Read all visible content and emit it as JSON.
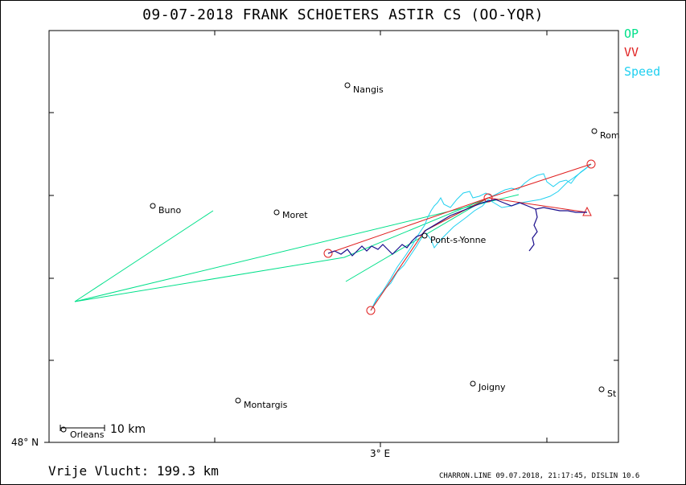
{
  "title": "09-07-2018   FRANK SCHOETERS   ASTIR CS (OO-YQR)",
  "legend": {
    "op": {
      "label": "OP",
      "color": "#00e08a"
    },
    "vv": {
      "label": "VV",
      "color": "#e02020"
    },
    "speed": {
      "label": "Speed",
      "color": "#20d0f0"
    }
  },
  "axes": {
    "lat_label": "48° N",
    "lon_label": "3° E"
  },
  "scale": {
    "label": "10  km"
  },
  "distance": "Vrije Vlucht:  199.3 km",
  "footer": "CHARRON.LINE 09.07.2018, 21:17:45, DISLIN 10.6",
  "towns": [
    {
      "name": "Nangis"
    },
    {
      "name": "Rom"
    },
    {
      "name": "Buno"
    },
    {
      "name": "Moret"
    },
    {
      "name": "Pont-s-Yonne"
    },
    {
      "name": "Joigny"
    },
    {
      "name": "Montargis"
    },
    {
      "name": "St"
    },
    {
      "name": "Orleans"
    }
  ],
  "colors": {
    "track": "#1a0d8c",
    "op": "#00e08a",
    "vv": "#e02020",
    "speed": "#20d0f0"
  }
}
